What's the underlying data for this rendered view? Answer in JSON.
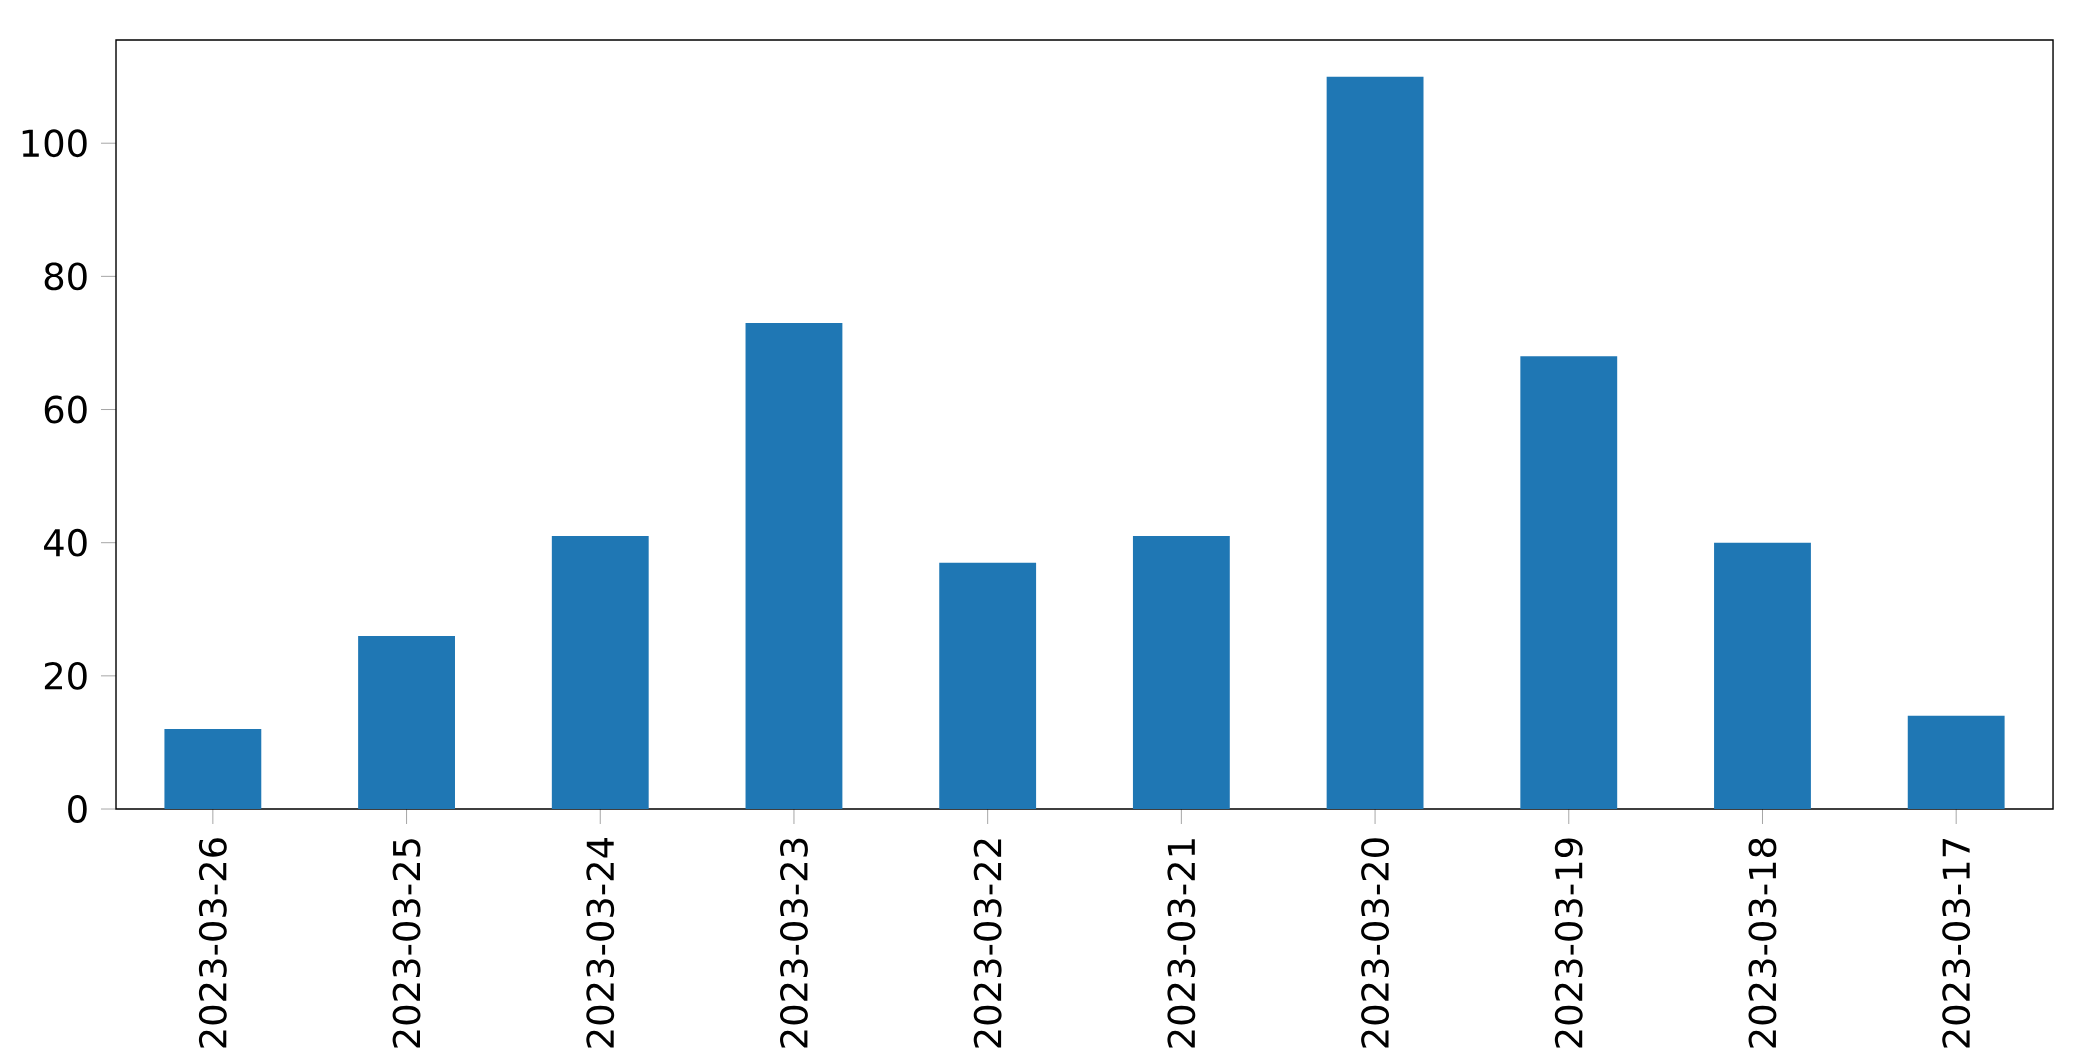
{
  "chart_data": {
    "type": "bar",
    "categories": [
      "2023-03-26",
      "2023-03-25",
      "2023-03-24",
      "2023-03-23",
      "2023-03-22",
      "2023-03-21",
      "2023-03-20",
      "2023-03-19",
      "2023-03-18",
      "2023-03-17"
    ],
    "values": [
      12,
      26,
      41,
      73,
      37,
      41,
      110,
      68,
      40,
      14
    ],
    "color": "#1f77b4",
    "ylim": [
      0,
      115.5
    ],
    "yticks": [
      0,
      20,
      40,
      60,
      80,
      100
    ],
    "grid": false
  }
}
